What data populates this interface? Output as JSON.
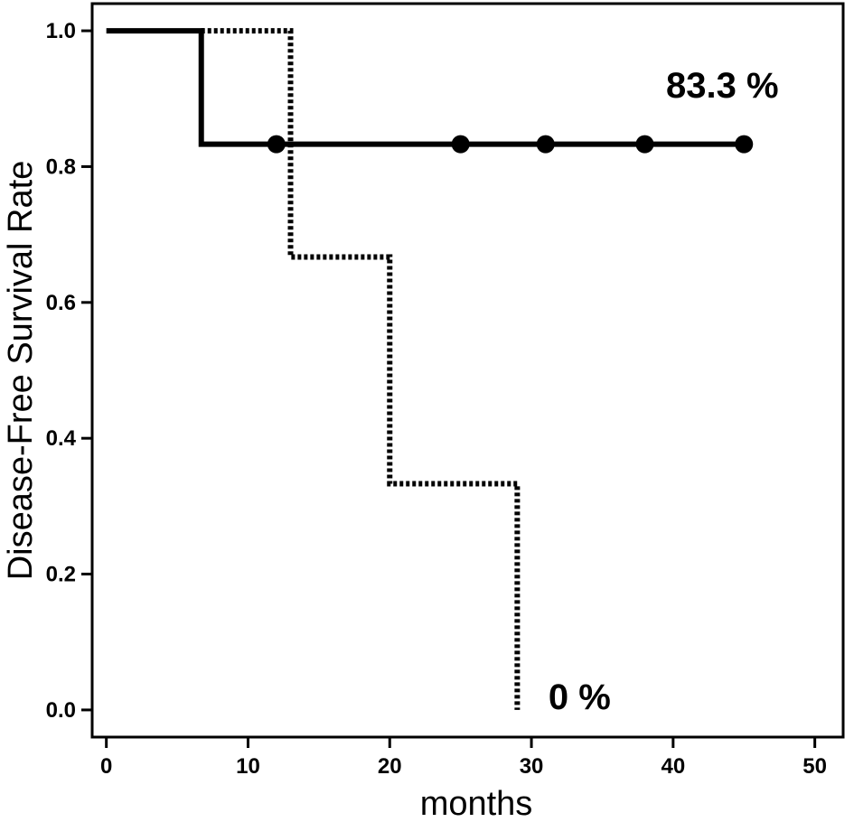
{
  "chart_data": {
    "type": "line",
    "title": "",
    "xlabel": "months",
    "ylabel": "Disease-Free Survival Rate",
    "xlim": [
      -1,
      52
    ],
    "ylim": [
      -0.04,
      1.04
    ],
    "x_ticks": [
      0,
      10,
      20,
      30,
      40,
      50
    ],
    "x_tick_labels": [
      "0",
      "10",
      "20",
      "30",
      "40",
      "50"
    ],
    "y_ticks": [
      0.0,
      0.2,
      0.4,
      0.6,
      0.8,
      1.0
    ],
    "y_tick_labels": [
      "0.0",
      "0.2",
      "0.4",
      "0.6",
      "0.8",
      "1.0"
    ],
    "grid": false,
    "legend": "none",
    "series": [
      {
        "style": "solid",
        "color": "#000000",
        "step_points": [
          [
            0,
            1.0
          ],
          [
            6.7,
            1.0
          ],
          [
            6.7,
            0.833
          ],
          [
            45,
            0.833
          ]
        ],
        "censor_marks": [
          [
            12,
            0.833
          ],
          [
            25,
            0.833
          ],
          [
            31,
            0.833
          ],
          [
            38,
            0.833
          ],
          [
            45,
            0.833
          ]
        ]
      },
      {
        "style": "dotted",
        "color": "#000000",
        "step_points": [
          [
            6.7,
            1.0
          ],
          [
            13,
            1.0
          ],
          [
            13,
            0.667
          ],
          [
            20,
            0.667
          ],
          [
            20,
            0.333
          ],
          [
            29,
            0.333
          ],
          [
            29,
            0.0
          ]
        ],
        "censor_marks": []
      }
    ],
    "annotations": [
      {
        "text": "83.3 %",
        "x": 39.5,
        "y": 0.92
      },
      {
        "text": "0 %",
        "x": 31.2,
        "y": 0.02
      }
    ]
  }
}
